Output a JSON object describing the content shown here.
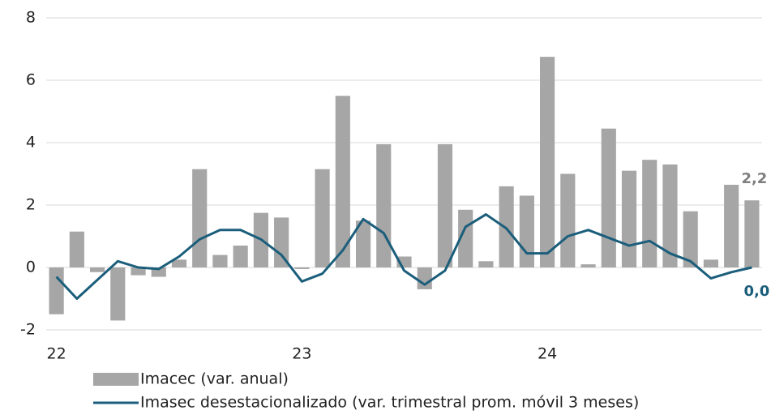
{
  "chart_data": {
    "type": "bar-line",
    "categories": [
      "22",
      null,
      null,
      null,
      null,
      null,
      null,
      null,
      null,
      null,
      null,
      null,
      "23",
      null,
      null,
      null,
      null,
      null,
      null,
      null,
      null,
      null,
      null,
      null,
      "24",
      null,
      null,
      null,
      null,
      null,
      null,
      null,
      null,
      null,
      null
    ],
    "series": [
      {
        "name": "Imacec (var. anual)",
        "type": "bar",
        "color": "#a6a6a6",
        "values": [
          -1.5,
          1.15,
          -0.15,
          -1.7,
          -0.25,
          -0.3,
          0.25,
          3.15,
          0.4,
          0.7,
          1.75,
          1.6,
          -0.05,
          3.15,
          5.5,
          1.5,
          3.95,
          0.35,
          -0.7,
          3.95,
          1.85,
          0.2,
          2.6,
          2.3,
          6.75,
          3.0,
          0.1,
          4.45,
          3.1,
          3.45,
          3.3,
          1.8,
          0.25,
          2.65,
          2.15
        ],
        "value_labels": [
          null,
          null,
          null,
          null,
          null,
          null,
          null,
          null,
          null,
          null,
          null,
          null,
          null,
          null,
          null,
          null,
          null,
          null,
          null,
          null,
          null,
          null,
          null,
          null,
          null,
          null,
          null,
          null,
          null,
          null,
          null,
          null,
          null,
          null,
          "2,2"
        ]
      },
      {
        "name": "Imasec desestacionalizado (var. trimestral prom. móvil 3 meses)",
        "type": "line",
        "color": "#1b5e7b",
        "values": [
          -0.3,
          -1.0,
          -0.4,
          0.2,
          0.0,
          -0.05,
          0.35,
          0.9,
          1.2,
          1.2,
          0.9,
          0.4,
          -0.45,
          -0.2,
          0.55,
          1.55,
          1.1,
          -0.1,
          -0.55,
          -0.1,
          1.3,
          1.7,
          1.25,
          0.45,
          0.45,
          1.0,
          1.2,
          0.95,
          0.7,
          0.85,
          0.45,
          0.2,
          -0.35,
          -0.15,
          0.0
        ],
        "value_labels": [
          null,
          null,
          null,
          null,
          null,
          null,
          null,
          null,
          null,
          null,
          null,
          null,
          null,
          null,
          null,
          null,
          null,
          null,
          null,
          null,
          null,
          null,
          null,
          null,
          null,
          null,
          null,
          null,
          null,
          null,
          null,
          null,
          null,
          null,
          "0,0"
        ]
      }
    ],
    "ylim": [
      -2,
      8
    ],
    "yticks": [
      -2,
      0,
      2,
      4,
      6,
      8
    ],
    "grid": true
  }
}
